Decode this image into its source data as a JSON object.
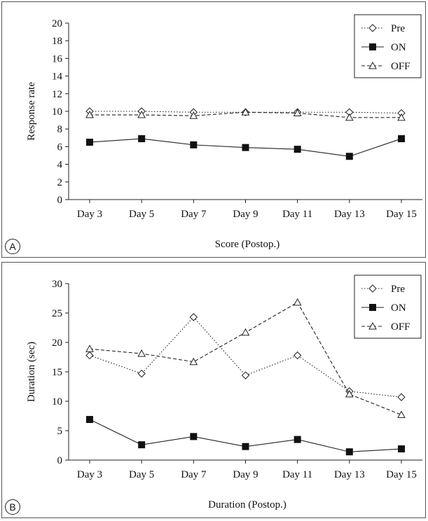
{
  "chart_data": [
    {
      "type": "line",
      "panel_label": "A",
      "title": "",
      "xlabel": "Score (Postop.)",
      "ylabel": "Response rate",
      "categories": [
        "Day 3",
        "Day 5",
        "Day 7",
        "Day 9",
        "Day 11",
        "Day 13",
        "Day 15"
      ],
      "ylim": [
        0,
        20
      ],
      "yticks": [
        "0",
        "2",
        "4",
        "6",
        "8",
        "10",
        "12",
        "14",
        "16",
        "18",
        "20"
      ],
      "grid": false,
      "legend_position": "top-right",
      "series": [
        {
          "name": "Pre",
          "marker": "diamond-open",
          "line": "dotted",
          "values": [
            10.0,
            10.0,
            9.9,
            9.9,
            9.9,
            9.9,
            9.8
          ]
        },
        {
          "name": "ON",
          "marker": "square-filled",
          "line": "solid",
          "values": [
            6.5,
            6.9,
            6.2,
            5.9,
            5.7,
            4.9,
            6.9
          ]
        },
        {
          "name": "OFF",
          "marker": "triangle-open",
          "line": "dashed",
          "values": [
            9.6,
            9.6,
            9.5,
            9.9,
            9.8,
            9.3,
            9.3
          ]
        }
      ]
    },
    {
      "type": "line",
      "panel_label": "B",
      "title": "",
      "xlabel": "Duration (Postop.)",
      "ylabel": "Duration (sec)",
      "categories": [
        "Day 3",
        "Day 5",
        "Day 7",
        "Day 9",
        "Day 11",
        "Day 13",
        "Day 15"
      ],
      "ylim": [
        0,
        30
      ],
      "yticks": [
        "0",
        "5",
        "10",
        "15",
        "20",
        "25",
        "30"
      ],
      "grid": false,
      "legend_position": "top-right",
      "series": [
        {
          "name": "Pre",
          "marker": "diamond-open",
          "line": "dotted",
          "values": [
            17.8,
            14.7,
            24.3,
            14.4,
            17.8,
            11.7,
            10.7
          ]
        },
        {
          "name": "ON",
          "marker": "square-filled",
          "line": "solid",
          "values": [
            6.9,
            2.6,
            4.0,
            2.3,
            3.5,
            1.4,
            1.9
          ]
        },
        {
          "name": "OFF",
          "marker": "triangle-open",
          "line": "dashed",
          "values": [
            18.9,
            18.1,
            16.7,
            21.7,
            26.8,
            11.2,
            7.7
          ]
        }
      ]
    }
  ]
}
